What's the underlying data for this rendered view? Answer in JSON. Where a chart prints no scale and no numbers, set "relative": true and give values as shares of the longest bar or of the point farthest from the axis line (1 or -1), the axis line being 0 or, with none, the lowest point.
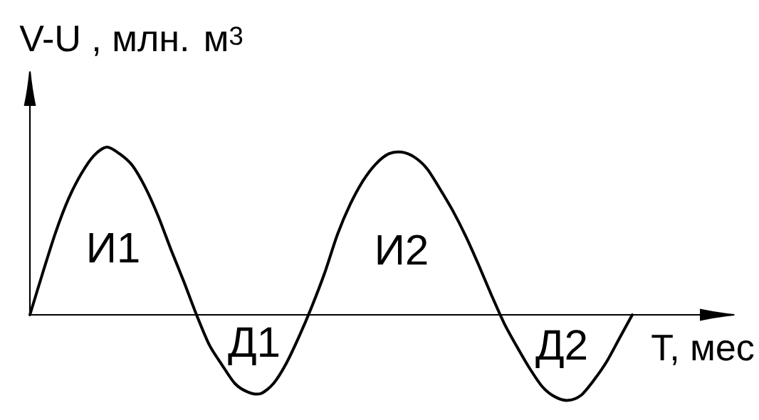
{
  "chart_data": {
    "type": "line",
    "relative": true,
    "color": "#000000",
    "ylabel": "V-U , млн. м$^{3}$",
    "xlabel": "T, мес",
    "annotations": [
      "И1",
      "Д1",
      "И2",
      "Д2"
    ],
    "categories": [
      null,
      null,
      null,
      null,
      null,
      null,
      null,
      null,
      null,
      null,
      null,
      null,
      null,
      null,
      null,
      null,
      null,
      null,
      null,
      null,
      null,
      null,
      null,
      null,
      null,
      null,
      null,
      null,
      null,
      null,
      null,
      null,
      null,
      null,
      null,
      null,
      null,
      null,
      null,
      null,
      null,
      null,
      null,
      null,
      null,
      null,
      null,
      null
    ],
    "values": [
      0,
      0.25,
      0.49,
      0.69,
      0.84,
      0.95,
      1.0,
      0.96,
      0.89,
      0.76,
      0.59,
      0.39,
      0.2,
      0,
      -0.18,
      -0.3,
      -0.41,
      -0.46,
      -0.47,
      -0.41,
      -0.29,
      -0.13,
      0.05,
      0.25,
      0.48,
      0.66,
      0.8,
      0.9,
      0.96,
      0.97,
      0.94,
      0.87,
      0.75,
      0.62,
      0.47,
      0.3,
      0.12,
      -0.05,
      -0.19,
      -0.32,
      -0.43,
      -0.49,
      -0.51,
      -0.48,
      -0.39,
      -0.28,
      -0.14,
      0
    ]
  }
}
